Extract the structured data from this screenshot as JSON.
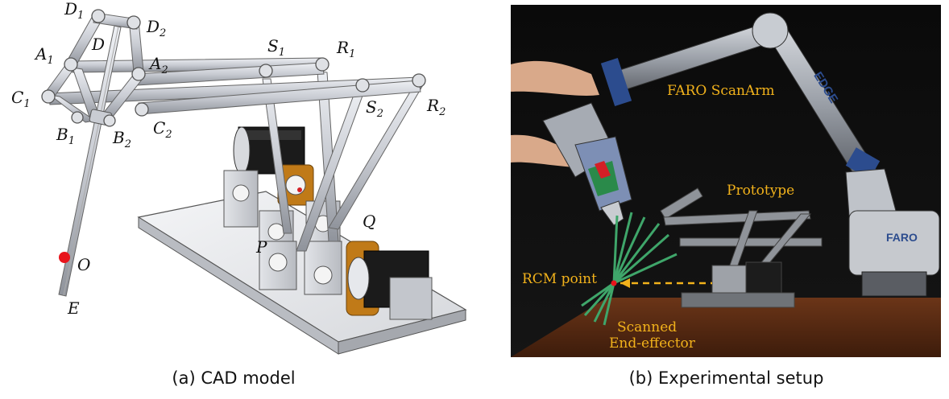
{
  "panel_a": {
    "caption": "(a) CAD model",
    "joint_labels": [
      {
        "id": "D1",
        "main": "D",
        "sub": "1"
      },
      {
        "id": "D",
        "main": "D",
        "sub": ""
      },
      {
        "id": "D2",
        "main": "D",
        "sub": "2"
      },
      {
        "id": "A1",
        "main": "A",
        "sub": "1"
      },
      {
        "id": "A2",
        "main": "A",
        "sub": "2"
      },
      {
        "id": "C1",
        "main": "C",
        "sub": "1"
      },
      {
        "id": "C2",
        "main": "C",
        "sub": "2"
      },
      {
        "id": "B1",
        "main": "B",
        "sub": "1"
      },
      {
        "id": "B2",
        "main": "B",
        "sub": "2"
      },
      {
        "id": "S1",
        "main": "S",
        "sub": "1"
      },
      {
        "id": "R1",
        "main": "R",
        "sub": "1"
      },
      {
        "id": "S2",
        "main": "S",
        "sub": "2"
      },
      {
        "id": "R2",
        "main": "R",
        "sub": "2"
      },
      {
        "id": "P",
        "main": "P",
        "sub": ""
      },
      {
        "id": "Q",
        "main": "Q",
        "sub": ""
      },
      {
        "id": "O",
        "main": "O",
        "sub": ""
      },
      {
        "id": "E",
        "main": "E",
        "sub": ""
      }
    ],
    "rcm_color": "#e8141b"
  },
  "panel_b": {
    "caption": "(b) Experimental setup",
    "labels": {
      "scanarm": "FARO ScanArm",
      "prototype": "Prototype",
      "rcm": "RCM point",
      "scanned_line1": "Scanned",
      "scanned_line2": "End-effector",
      "edge_logo": "EDGE",
      "faro_logo": "FARO"
    },
    "label_color": "#f2b21b",
    "scan_color": "#3fa66a"
  }
}
